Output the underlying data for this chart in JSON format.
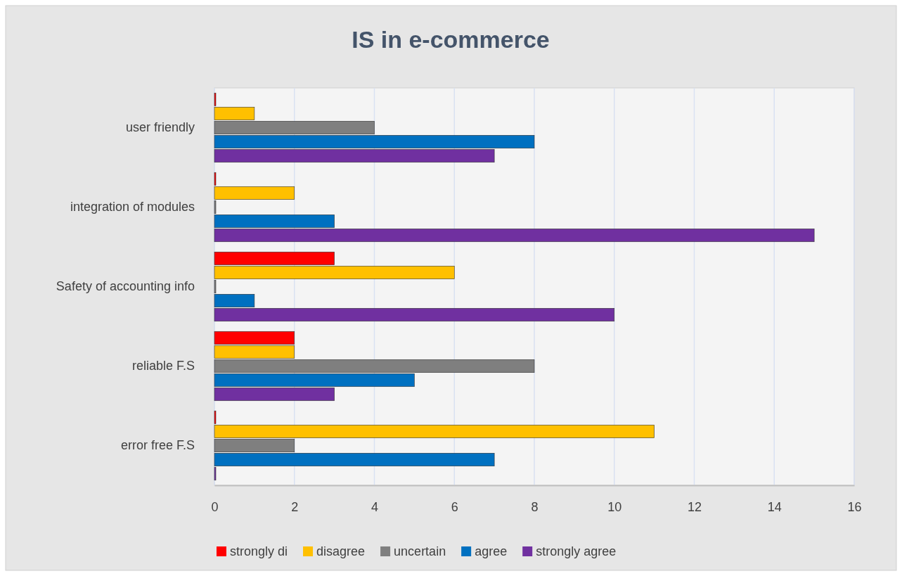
{
  "chart_data": {
    "type": "bar",
    "orientation": "horizontal",
    "title": "IS in e-commerce",
    "categories": [
      "user friendly",
      "integration of modules",
      "Safety of accounting info",
      "reliable F.S",
      "error free F.S"
    ],
    "series": [
      {
        "name": "strongly di",
        "color": "#ff0000",
        "values": [
          0,
          0,
          3,
          2,
          0
        ]
      },
      {
        "name": "disagree",
        "color": "#ffc000",
        "values": [
          1,
          2,
          6,
          2,
          11
        ]
      },
      {
        "name": "uncertain",
        "color": "#7f7f7f",
        "values": [
          4,
          0,
          0,
          8,
          2
        ]
      },
      {
        "name": "agree",
        "color": "#0070c0",
        "values": [
          8,
          3,
          1,
          5,
          7
        ]
      },
      {
        "name": "strongly agree",
        "color": "#7030a0",
        "values": [
          7,
          15,
          10,
          3,
          0
        ]
      }
    ],
    "xlim": [
      0,
      16
    ],
    "xticks": [
      0,
      2,
      4,
      6,
      8,
      10,
      12,
      14,
      16
    ],
    "grid": "x",
    "legend": "bottom"
  }
}
